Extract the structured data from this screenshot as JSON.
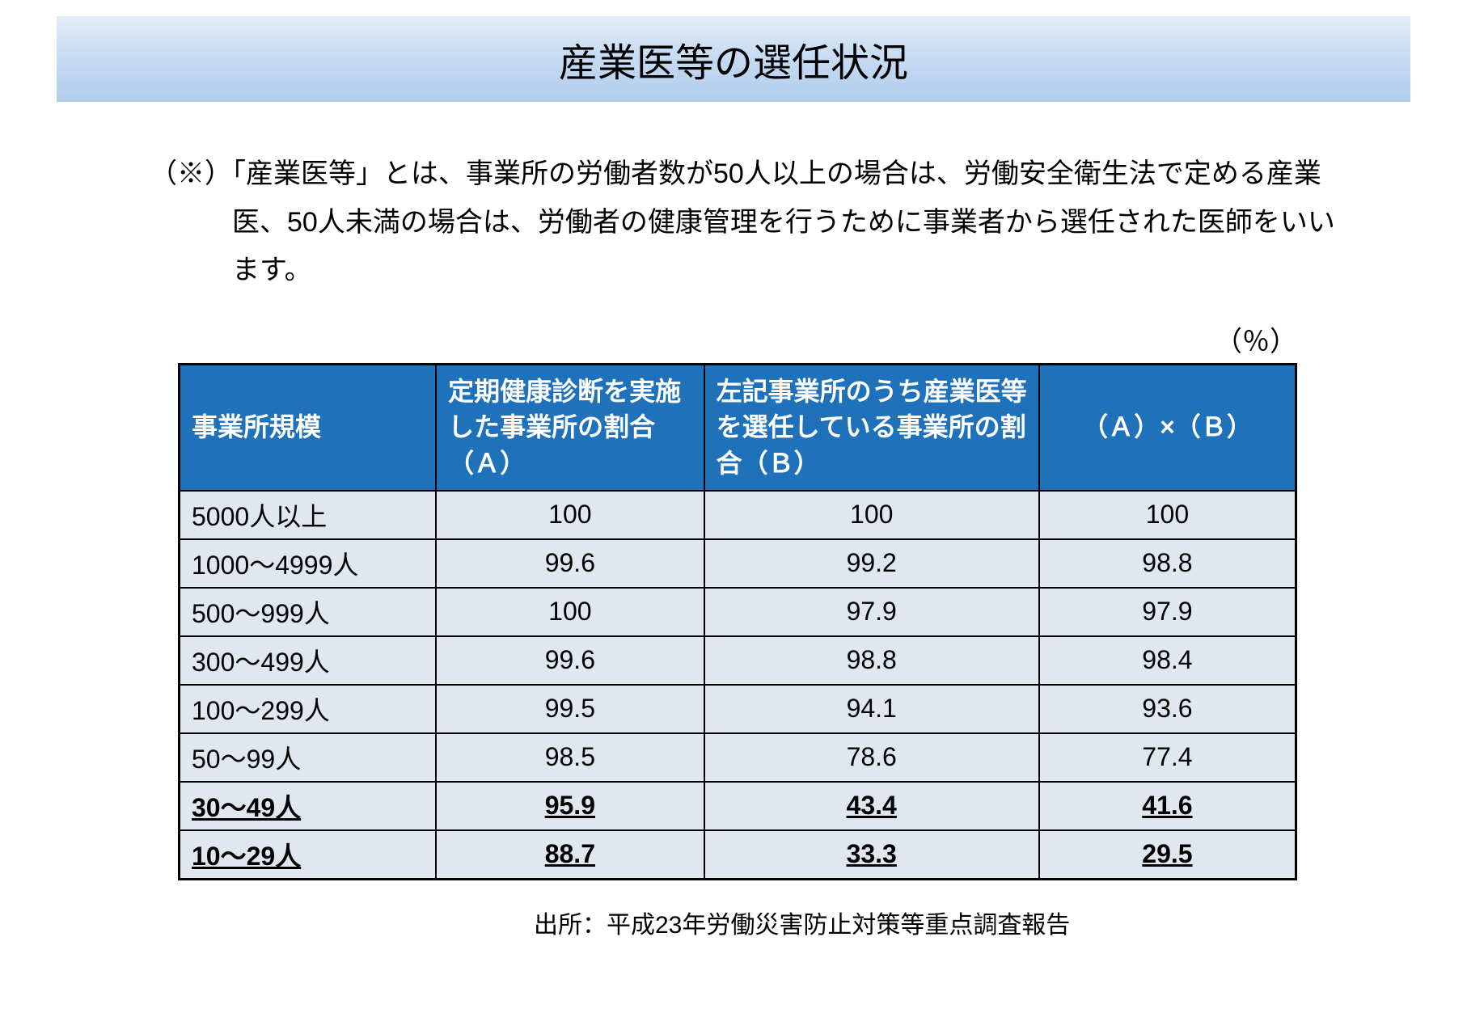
{
  "title": "産業医等の選任状況",
  "note_prefix": "（※）",
  "note_text": "「産業医等」とは、事業所の労働者数が50人以上の場合は、労働安全衛生法で定める産業医、50人未満の場合は、労働者の健康管理を行うために事業者から選任された医師をいいます。",
  "unit": "（％）",
  "table": {
    "columns": [
      "事業所規模",
      "定期健康診断を実施した事業所の割合（Ａ）",
      "左記事業所のうち産業医等を選任している事業所の割合（Ｂ）",
      "（Ａ）×（Ｂ）"
    ],
    "rows": [
      {
        "label": "5000人以上",
        "a": "100",
        "b": "100",
        "ab": "100",
        "em": false
      },
      {
        "label": "1000～4999人",
        "a": "99.6",
        "b": "99.2",
        "ab": "98.8",
        "em": false
      },
      {
        "label": "500～999人",
        "a": "100",
        "b": "97.9",
        "ab": "97.9",
        "em": false
      },
      {
        "label": "300～499人",
        "a": "99.6",
        "b": "98.8",
        "ab": "98.4",
        "em": false
      },
      {
        "label": "100～299人",
        "a": "99.5",
        "b": "94.1",
        "ab": "93.6",
        "em": false
      },
      {
        "label": "50～99人",
        "a": "98.5",
        "b": "78.6",
        "ab": "77.4",
        "em": false
      },
      {
        "label": "30～49人",
        "a": "95.9",
        "b": "43.4",
        "ab": "41.6",
        "em": true
      },
      {
        "label": "10～29人",
        "a": "88.7",
        "b": "33.3",
        "ab": "29.5",
        "em": true
      }
    ],
    "header_bg": "#1f71b9",
    "header_fg": "#ffffff",
    "row_bg": "#e0e7ef",
    "border_color": "#000000"
  },
  "source": "出所：平成23年労働災害防止対策等重点調査報告"
}
